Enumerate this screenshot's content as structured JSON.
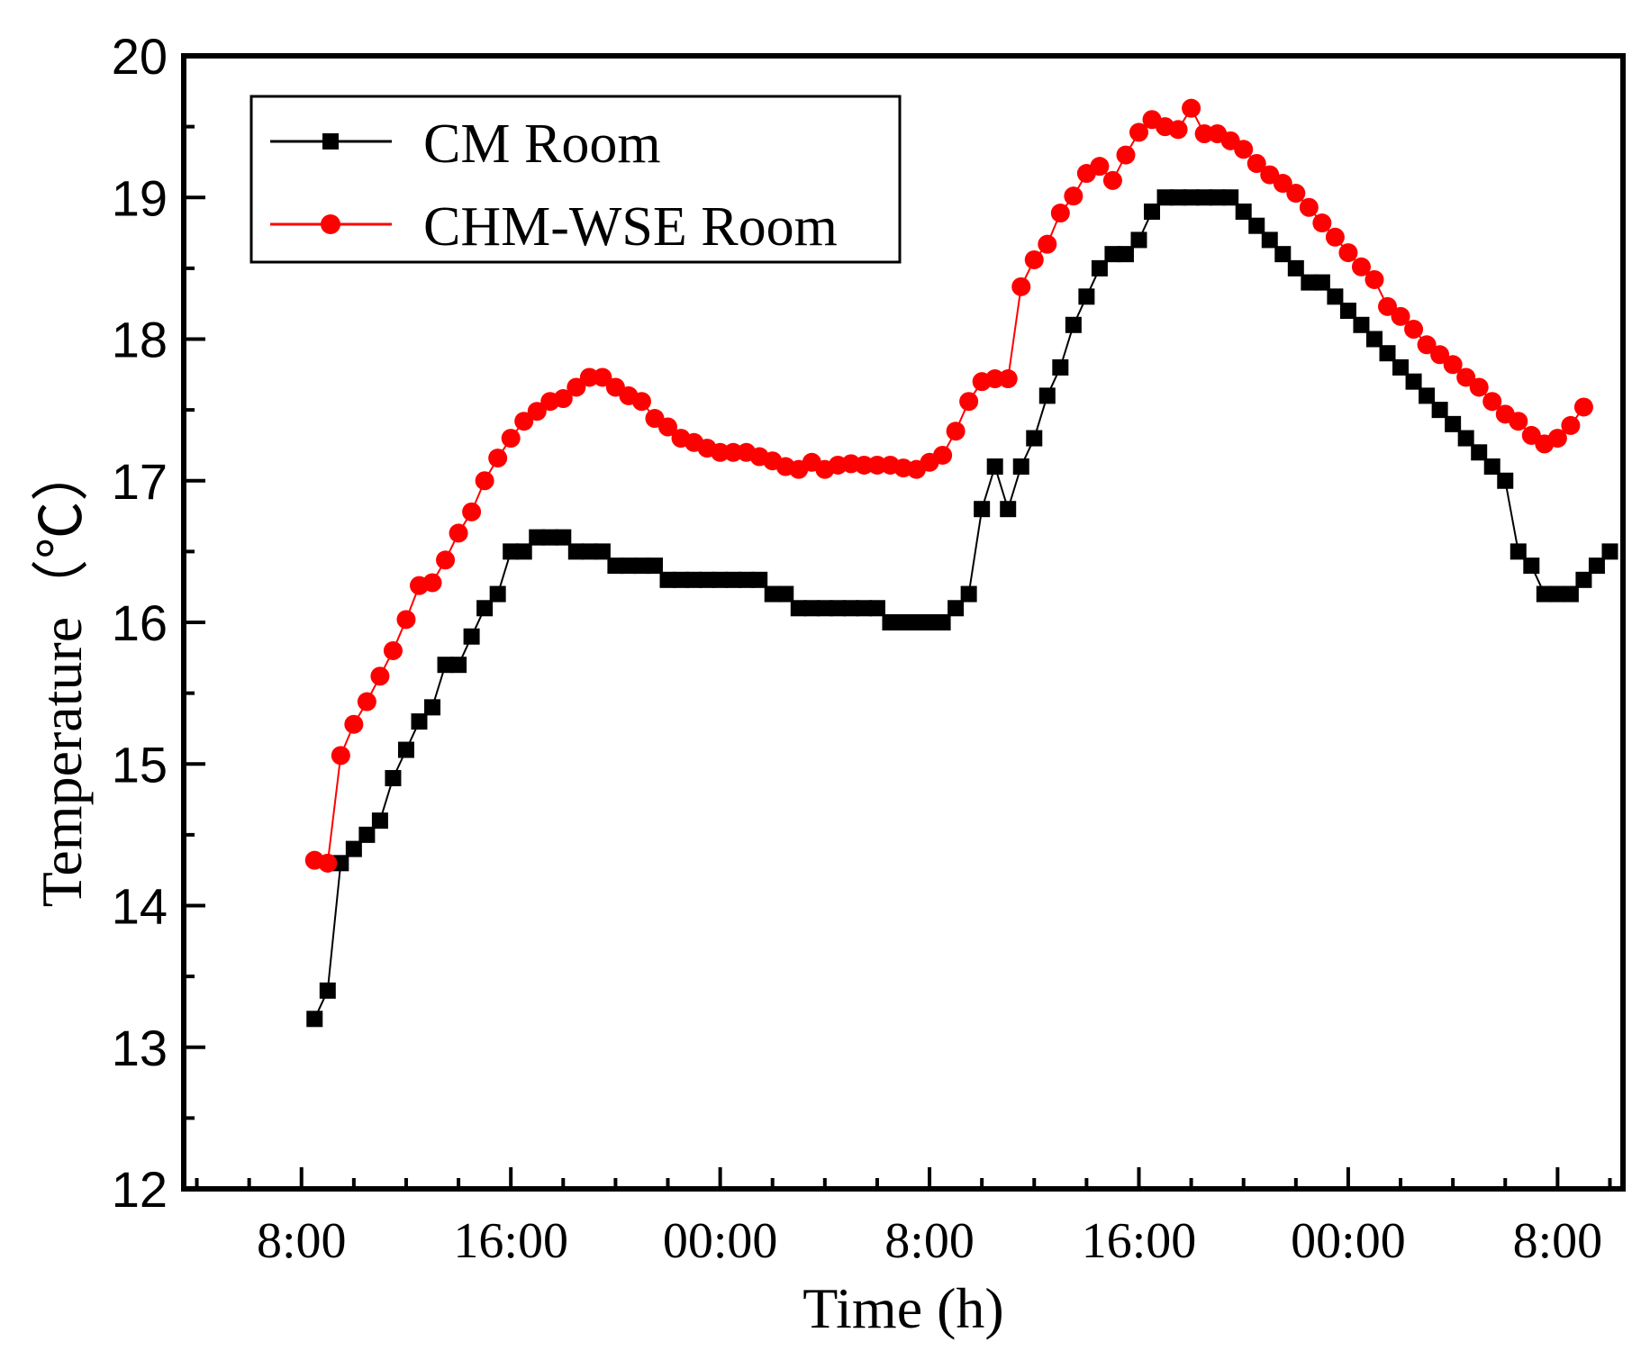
{
  "chart_data": {
    "type": "line",
    "xlabel": "Time (h)",
    "ylabel": "Temperature（℃）",
    "ylim": [
      12,
      20
    ],
    "yticks": [
      12,
      13,
      14,
      15,
      16,
      17,
      18,
      19,
      20
    ],
    "xtick_labels": [
      "8:00",
      "16:00",
      "00:00",
      "8:00",
      "16:00",
      "00:00",
      "8:00"
    ],
    "xtick_hours": [
      8,
      16,
      24,
      32,
      40,
      48,
      56
    ],
    "xlim_hours": [
      3.5,
      58.5
    ],
    "x_start_hour": 8.5,
    "x_step_hours": 0.5,
    "grid": false,
    "legend_position": "top-left",
    "series": [
      {
        "name": "CM Room",
        "color": "#000000",
        "marker": "square",
        "values": [
          13.2,
          13.4,
          14.3,
          14.4,
          14.5,
          14.6,
          14.9,
          15.1,
          15.3,
          15.4,
          15.7,
          15.7,
          15.9,
          16.1,
          16.2,
          16.5,
          16.5,
          16.6,
          16.6,
          16.6,
          16.5,
          16.5,
          16.5,
          16.4,
          16.4,
          16.4,
          16.4,
          16.3,
          16.3,
          16.3,
          16.3,
          16.3,
          16.3,
          16.3,
          16.3,
          16.2,
          16.2,
          16.1,
          16.1,
          16.1,
          16.1,
          16.1,
          16.1,
          16.1,
          16.0,
          16.0,
          16.0,
          16.0,
          16.0,
          16.1,
          16.2,
          16.8,
          17.1,
          16.8,
          17.1,
          17.3,
          17.6,
          17.8,
          18.1,
          18.3,
          18.5,
          18.6,
          18.6,
          18.7,
          18.9,
          19.0,
          19.0,
          19.0,
          19.0,
          19.0,
          19.0,
          18.9,
          18.8,
          18.7,
          18.6,
          18.5,
          18.4,
          18.4,
          18.3,
          18.2,
          18.1,
          18.0,
          17.9,
          17.8,
          17.7,
          17.6,
          17.5,
          17.4,
          17.3,
          17.2,
          17.1,
          17.0,
          16.5,
          16.4,
          16.2,
          16.2,
          16.2,
          16.3,
          16.4,
          16.5
        ]
      },
      {
        "name": "CHM-WSE Room",
        "color": "#ff0000",
        "marker": "circle",
        "values": [
          14.32,
          14.3,
          15.06,
          15.28,
          15.44,
          15.62,
          15.8,
          16.02,
          16.26,
          16.28,
          16.44,
          16.63,
          16.78,
          17.0,
          17.16,
          17.3,
          17.42,
          17.49,
          17.56,
          17.58,
          17.66,
          17.73,
          17.73,
          17.66,
          17.6,
          17.56,
          17.44,
          17.38,
          17.3,
          17.27,
          17.23,
          17.2,
          17.2,
          17.2,
          17.17,
          17.14,
          17.1,
          17.08,
          17.13,
          17.08,
          17.11,
          17.12,
          17.11,
          17.11,
          17.11,
          17.09,
          17.08,
          17.13,
          17.18,
          17.35,
          17.56,
          17.7,
          17.72,
          17.72,
          18.37,
          18.56,
          18.67,
          18.89,
          19.01,
          19.17,
          19.22,
          19.12,
          19.3,
          19.46,
          19.55,
          19.5,
          19.48,
          19.63,
          19.45,
          19.45,
          19.4,
          19.34,
          19.24,
          19.16,
          19.1,
          19.03,
          18.93,
          18.82,
          18.72,
          18.61,
          18.51,
          18.42,
          18.23,
          18.16,
          18.07,
          17.96,
          17.89,
          17.82,
          17.73,
          17.66,
          17.56,
          17.47,
          17.42,
          17.32,
          17.26,
          17.3,
          17.39,
          17.52
        ]
      }
    ]
  }
}
